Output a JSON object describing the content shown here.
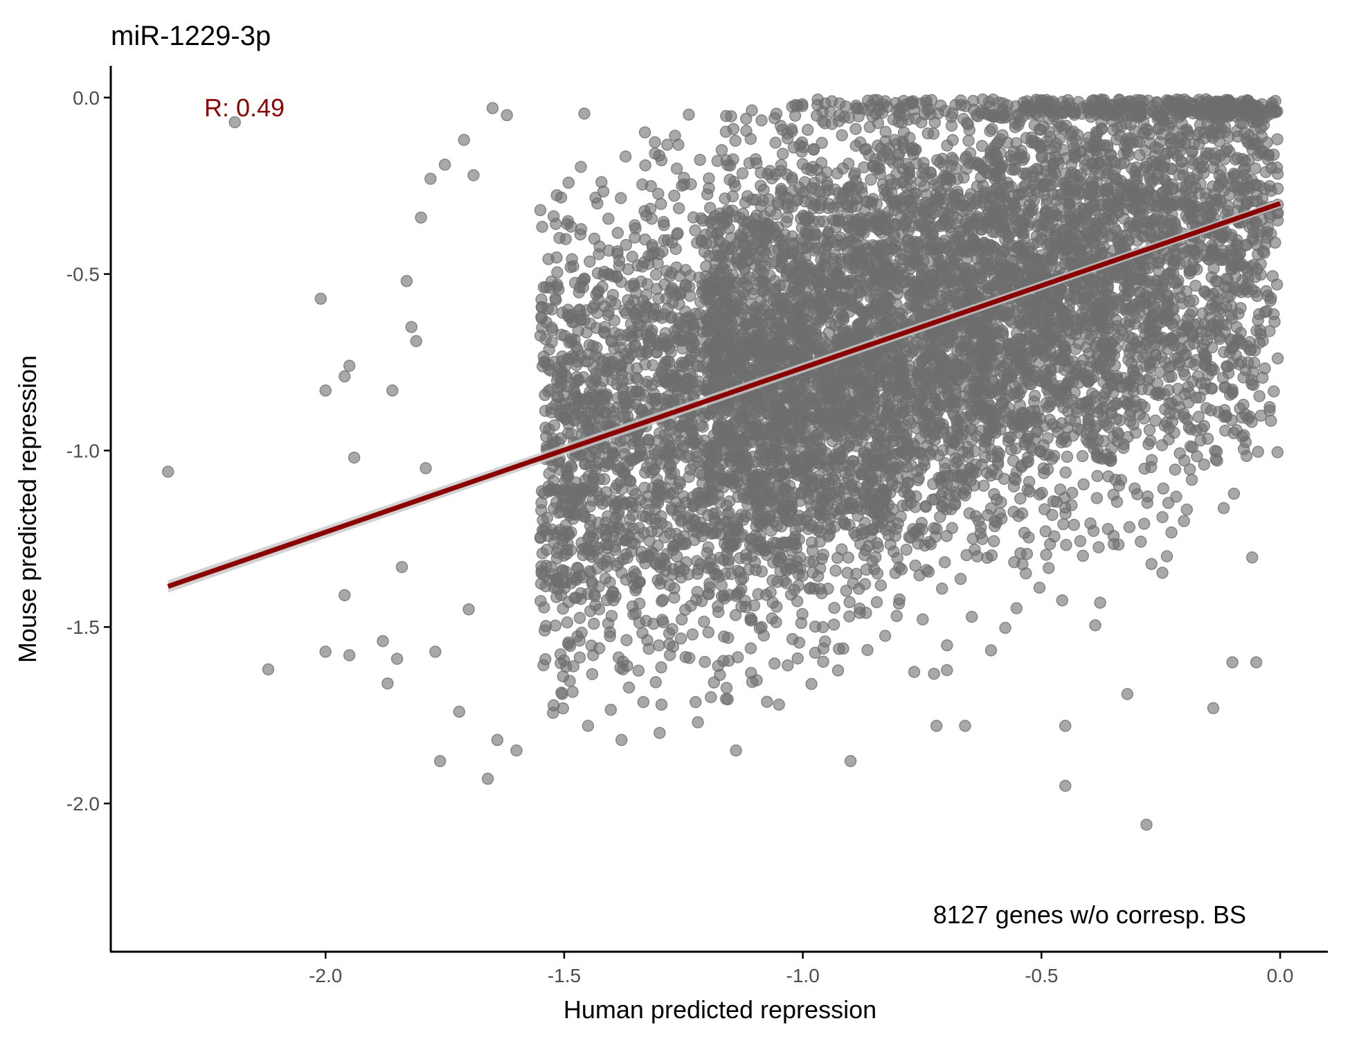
{
  "chart_data": {
    "type": "scatter",
    "title": "miR-1229-3p",
    "xlabel": "Human predicted repression",
    "ylabel": "Mouse predicted repression",
    "xlim": [
      -2.45,
      0.1
    ],
    "ylim": [
      -2.42,
      0.09
    ],
    "x_ticks": [
      -2.0,
      -1.5,
      -1.0,
      -0.5,
      0.0
    ],
    "x_tick_labels": [
      "-2.0",
      "-1.5",
      "-1.0",
      "-0.5",
      "0.0"
    ],
    "y_ticks": [
      0.0,
      -0.5,
      -1.0,
      -1.5,
      -2.0
    ],
    "y_tick_labels": [
      "0.0",
      "-0.5",
      "-1.0",
      "-1.5",
      "-2.0"
    ],
    "grid": false,
    "annotations": {
      "correlation": "R: 0.49",
      "gene_count": "8127 genes w/o corresp. BS"
    },
    "colors": {
      "points": "#6e6e6e",
      "regression": "#8b0000",
      "confidence_band": "#c8c8c8"
    },
    "regression_line": {
      "x": [
        -2.33,
        0.0
      ],
      "y": [
        -1.385,
        -0.3
      ]
    },
    "n_points": 8127,
    "points": [
      [
        -2.33,
        -1.06
      ],
      [
        -2.19,
        -0.07
      ],
      [
        -2.12,
        -1.62
      ],
      [
        -2.01,
        -0.57
      ],
      [
        -2.0,
        -0.83
      ],
      [
        -2.0,
        -1.57
      ],
      [
        -1.96,
        -0.79
      ],
      [
        -1.95,
        -0.76
      ],
      [
        -1.96,
        -1.41
      ],
      [
        -1.95,
        -1.58
      ],
      [
        -1.94,
        -1.02
      ],
      [
        -1.88,
        -1.54
      ],
      [
        -1.87,
        -1.66
      ],
      [
        -1.86,
        -0.83
      ],
      [
        -1.85,
        -1.59
      ],
      [
        -1.84,
        -1.33
      ],
      [
        -1.83,
        -0.52
      ],
      [
        -1.82,
        -0.65
      ],
      [
        -1.81,
        -0.69
      ],
      [
        -1.8,
        -0.34
      ],
      [
        -1.79,
        -1.05
      ],
      [
        -1.78,
        -0.23
      ],
      [
        -1.77,
        -1.57
      ],
      [
        -1.76,
        -1.88
      ],
      [
        -1.75,
        -0.19
      ],
      [
        -1.72,
        -1.74
      ],
      [
        -1.71,
        -0.12
      ],
      [
        -1.7,
        -1.45
      ],
      [
        -1.69,
        -0.22
      ],
      [
        -1.66,
        -1.93
      ],
      [
        -1.65,
        -0.03
      ],
      [
        -1.64,
        -1.82
      ],
      [
        -1.62,
        -0.05
      ],
      [
        -1.6,
        -1.85
      ],
      [
        -1.45,
        -1.78
      ],
      [
        -1.38,
        -1.82
      ],
      [
        -1.3,
        -1.8
      ],
      [
        -1.22,
        -1.77
      ],
      [
        -1.14,
        -1.85
      ],
      [
        -1.05,
        -1.72
      ],
      [
        -0.9,
        -1.88
      ],
      [
        -0.72,
        -1.78
      ],
      [
        -0.66,
        -1.78
      ],
      [
        -0.45,
        -1.95
      ],
      [
        -0.45,
        -1.78
      ],
      [
        -0.32,
        -1.69
      ],
      [
        -0.28,
        -2.06
      ],
      [
        -0.14,
        -1.73
      ],
      [
        -0.1,
        -1.6
      ],
      [
        -0.05,
        -1.6
      ]
    ]
  }
}
